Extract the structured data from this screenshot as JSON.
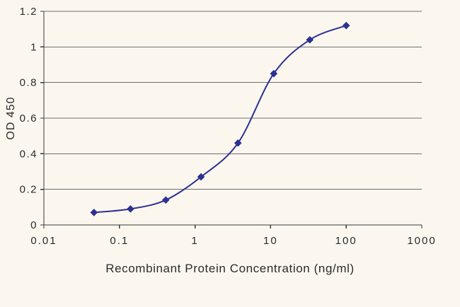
{
  "chart_data": {
    "type": "line",
    "title": "",
    "xlabel": "Recombinant Protein Concentration (ng/ml)",
    "ylabel": "OD 450",
    "x_scale": "log",
    "xlim": [
      0.01,
      1000
    ],
    "ylim": [
      0,
      1.2
    ],
    "x_ticks": [
      0.01,
      0.1,
      1,
      10,
      100,
      1000
    ],
    "x_tick_labels": [
      "0.01",
      "0.1",
      "1",
      "10",
      "100",
      "1000"
    ],
    "y_ticks": [
      0,
      0.2,
      0.4,
      0.6,
      0.8,
      1,
      1.2
    ],
    "y_tick_labels": [
      "0",
      "0.2",
      "0.4",
      "0.6",
      "0.8",
      "1",
      "1.2"
    ],
    "grid": "horizontal",
    "legend": "none",
    "series": [
      {
        "name": "OD 450",
        "marker": "diamond",
        "color": "#2d3191",
        "x": [
          0.046,
          0.14,
          0.41,
          1.2,
          3.7,
          11,
          33,
          100
        ],
        "y": [
          0.07,
          0.09,
          0.14,
          0.27,
          0.46,
          0.85,
          1.04,
          1.12
        ]
      }
    ]
  },
  "style": {
    "background": "#fbf7ef",
    "grid_color": "#6e6e6e",
    "axis_color": "#3a3a3a",
    "text_color": "#2b2b2b",
    "line_color": "#2d3191"
  }
}
